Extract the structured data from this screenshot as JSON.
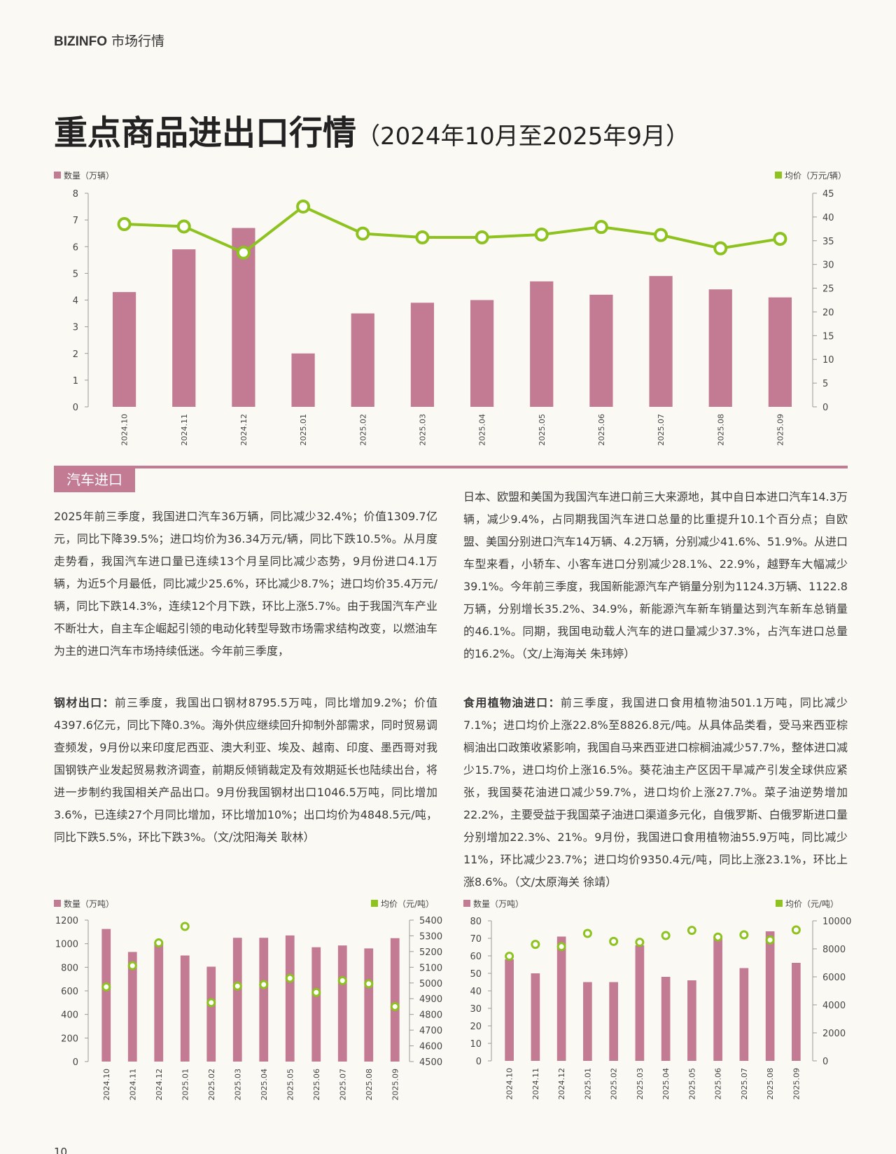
{
  "header": {
    "brand": "BIZINFO",
    "section": "市场行情"
  },
  "title": "重点商品进出口行情",
  "subtitle": "（2024年10月至2025年9月）",
  "section_tag": "汽车进口",
  "car_text": [
    "2025年前三季度，我国进口汽车36万辆，同比减少32.4%；价值1309.7亿元，同比下降39.5%；进口均价为36.34万元/辆，同比下跌10.5%。从月度走势看，我国汽车进口量已连续13个月呈同比减少态势，9月份进口4.1万辆，为近5个月最低，同比减少25.6%，环比减少8.7%；进口均价35.4万元/辆，同比下跌14.3%，连续12个月下跌，环比上涨5.7%。由于我国汽车产业不断壮大，自主车企崛起引领的电动化转型导致市场需求结构改变，以燃油车为主的进口汽车市场持续低迷。今年前三季度，",
    "日本、欧盟和美国为我国汽车进口前三大来源地，其中自日本进口汽车14.3万辆，减少9.4%，占同期我国汽车进口总量的比重提升10.1个百分点；自欧盟、美国分别进口汽车14万辆、4.2万辆，分别减少41.6%、51.9%。从进口车型来看，小轿车、小客车进口分别减少28.1%、22.9%，越野车大幅减少39.1%。今年前三季度，我国新能源汽车产销量分别为1124.3万辆、1122.8万辆，分别增长35.2%、34.9%，新能源汽车新车销量达到汽车新车总销量的46.1%。同期，我国电动载人汽车的进口量减少37.3%，占汽车进口总量的16.2%。（文/上海海关 朱玮婷）"
  ],
  "steel": {
    "lead": "钢材出口：",
    "text": "前三季度，我国出口钢材8795.5万吨，同比增加9.2%；价值4397.6亿元，同比下降0.3%。海外供应继续回升抑制外部需求，同时贸易调查频发，9月份以来印度尼西亚、澳大利亚、埃及、越南、印度、墨西哥对我国钢铁产业发起贸易救济调查，前期反倾销裁定及有效期延长也陆续出台，将进一步制约我国相关产品出口。9月份我国钢材出口1046.5万吨，同比增加3.6%，已连续27个月同比增加，环比增加10%；出口均价为4848.5元/吨，同比下跌5.5%，环比下跌3%。（文/沈阳海关 耿林）"
  },
  "oil": {
    "lead": "食用植物油进口：",
    "text": "前三季度，我国进口食用植物油501.1万吨，同比减少7.1%；进口均价上涨22.8%至8826.8元/吨。从具体品类看，受马来西亚棕榈油出口政策收紧影响，我国自马来西亚进口棕榈油减少57.7%，整体进口减少15.7%，进口均价上涨16.5%。葵花油主产区因干旱减产引发全球供应紧张，我国葵花油进口减少59.7%，进口均价上涨27.7%。菜子油逆势增加22.2%，主要受益于我国菜子油进口渠道多元化，自俄罗斯、白俄罗斯进口量分别增加22.3%、21%。9月份，我国进口食用植物油55.9万吨，同比减少11%，环比减少23.7%；进口均价9350.4元/吨，同比上涨23.1%，环比上涨8.6%。（文/太原海关 徐靖）"
  },
  "page_number": "10",
  "chart_data": [
    {
      "type": "combo",
      "categories": [
        "2024.10",
        "2024.11",
        "2024.12",
        "2025.01",
        "2025.02",
        "2025.03",
        "2025.04",
        "2025.05",
        "2025.06",
        "2025.07",
        "2025.08",
        "2025.09"
      ],
      "ylim": [
        0,
        8
      ],
      "yticks": [
        0,
        1,
        2,
        3,
        4,
        5,
        6,
        7,
        8
      ],
      "y2lim": [
        0,
        45
      ],
      "y2ticks": [
        0,
        5,
        10,
        15,
        20,
        25,
        30,
        35,
        40,
        45
      ],
      "series": [
        {
          "name": "数量（万辆）",
          "type": "bar",
          "color": "#c27b93",
          "values": [
            4.3,
            5.9,
            6.7,
            2.0,
            3.5,
            3.9,
            4.0,
            4.7,
            4.2,
            4.9,
            4.4,
            4.1
          ]
        },
        {
          "name": "均价（万元/辆）",
          "type": "line",
          "axis": "y2",
          "color": "#8dc21f",
          "values": [
            38.5,
            38.0,
            32.5,
            42.2,
            36.5,
            35.7,
            35.7,
            36.3,
            37.9,
            36.2,
            33.4,
            35.4
          ]
        }
      ]
    },
    {
      "type": "combo",
      "categories": [
        "2024.10",
        "2024.11",
        "2024.12",
        "2025.01",
        "2025.02",
        "2025.03",
        "2025.04",
        "2025.05",
        "2025.06",
        "2025.07",
        "2025.08",
        "2025.09"
      ],
      "ylim": [
        0,
        1200
      ],
      "yticks": [
        0,
        200,
        400,
        600,
        800,
        1000,
        1200
      ],
      "y2lim": [
        4500,
        5400
      ],
      "y2ticks": [
        4500,
        4600,
        4700,
        4800,
        4900,
        5000,
        5100,
        5200,
        5300,
        5400
      ],
      "series": [
        {
          "name": "数量（万吨）",
          "type": "bar",
          "color": "#c27b93",
          "values": [
            1125,
            930,
            1010,
            900,
            805,
            1050,
            1050,
            1070,
            970,
            985,
            960,
            1047
          ]
        },
        {
          "name": "均价（元/吨）",
          "type": "point",
          "axis": "y2",
          "color": "#8dc21f",
          "values": [
            4975,
            5110,
            5255,
            5360,
            4875,
            4980,
            4990,
            5030,
            4940,
            5015,
            4995,
            4850
          ]
        }
      ]
    },
    {
      "type": "combo",
      "categories": [
        "2024.10",
        "2024.11",
        "2024.12",
        "2025.01",
        "2025.02",
        "2025.03",
        "2025.04",
        "2025.05",
        "2025.06",
        "2025.07",
        "2025.08",
        "2025.09"
      ],
      "ylim": [
        0,
        80
      ],
      "yticks": [
        0,
        10,
        20,
        30,
        40,
        50,
        60,
        70,
        80
      ],
      "y2lim": [
        0,
        10000
      ],
      "y2ticks": [
        0,
        2000,
        4000,
        6000,
        8000,
        10000
      ],
      "series": [
        {
          "name": "数量（万吨）",
          "type": "bar",
          "color": "#c27b93",
          "values": [
            58,
            50,
            71,
            45,
            45,
            66,
            48,
            46,
            71,
            53,
            74,
            56
          ]
        },
        {
          "name": "均价（元/吨）",
          "type": "point",
          "axis": "y2",
          "color": "#8dc21f",
          "values": [
            7470,
            8320,
            8160,
            9100,
            8530,
            8470,
            8950,
            9320,
            8840,
            9000,
            8630,
            9350
          ]
        }
      ]
    }
  ]
}
